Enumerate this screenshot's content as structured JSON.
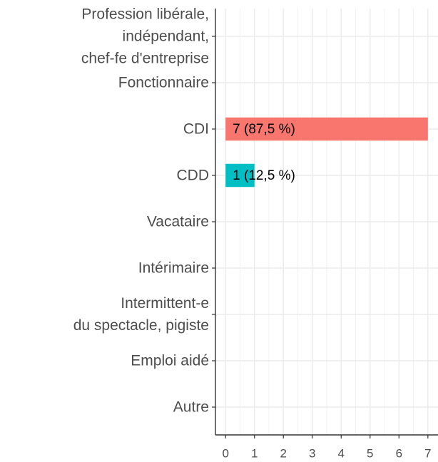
{
  "chart_data": {
    "type": "barh",
    "categories": [
      "Profession libérale,\nindépendant,\nchef-fe d'entreprise",
      "Fonctionnaire",
      "CDI",
      "CDD",
      "Vacataire",
      "Intérimaire",
      "Intermittent-e\ndu spectacle, pigiste",
      "Emploi aidé",
      "Autre"
    ],
    "values": [
      0,
      0,
      7,
      1,
      0,
      0,
      0,
      0,
      0
    ],
    "value_labels": [
      null,
      null,
      "7 (87,5 %)",
      "1 (12,5 %)",
      null,
      null,
      null,
      null,
      null
    ],
    "colors": [
      null,
      null,
      "#F8766D",
      "#00BFC4",
      null,
      null,
      null,
      null,
      null
    ],
    "xlim": [
      -0.35,
      7.35
    ],
    "xticks": [
      0,
      1,
      2,
      3,
      4,
      5,
      6,
      7
    ],
    "grid": true
  }
}
